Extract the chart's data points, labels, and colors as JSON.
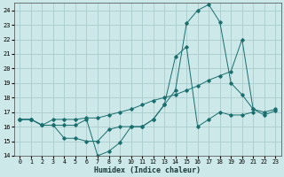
{
  "xlabel": "Humidex (Indice chaleur)",
  "bg_color": "#cce8e8",
  "grid_color": "#aacccc",
  "line_color": "#1a6e6e",
  "xlim": [
    -0.5,
    23.5
  ],
  "ylim": [
    14,
    24.5
  ],
  "yticks": [
    14,
    15,
    16,
    17,
    18,
    19,
    20,
    21,
    22,
    23,
    24
  ],
  "xticks": [
    0,
    1,
    2,
    3,
    4,
    5,
    6,
    7,
    8,
    9,
    10,
    11,
    12,
    13,
    14,
    15,
    16,
    17,
    18,
    19,
    20,
    21,
    22,
    23
  ],
  "line1_x": [
    0,
    1,
    2,
    3,
    4,
    5,
    6,
    7,
    8,
    9,
    10,
    11,
    12,
    13,
    14,
    15,
    16,
    17,
    18,
    19,
    20,
    21
  ],
  "line1_y": [
    16.5,
    16.5,
    16.1,
    16.1,
    16.1,
    16.1,
    16.5,
    14.0,
    14.3,
    14.9,
    16.0,
    16.0,
    16.5,
    17.5,
    20.8,
    21.5,
    16.0,
    16.5,
    17.0,
    16.8,
    16.8,
    17.0
  ],
  "line2_x": [
    0,
    1,
    2,
    3,
    4,
    5,
    6,
    7,
    8,
    9,
    10,
    11,
    12,
    13,
    14,
    15,
    16,
    17,
    18,
    19,
    20,
    21,
    22,
    23
  ],
  "line2_y": [
    16.5,
    16.5,
    16.1,
    16.1,
    15.2,
    15.2,
    15.0,
    15.0,
    15.8,
    16.0,
    16.0,
    16.0,
    16.5,
    17.5,
    18.5,
    23.1,
    24.0,
    24.4,
    23.2,
    19.0,
    18.2,
    17.2,
    16.8,
    17.1
  ],
  "line3_x": [
    0,
    1,
    2,
    3,
    4,
    5,
    6,
    7,
    8,
    9,
    10,
    11,
    12,
    13,
    14,
    15,
    16,
    17,
    18,
    19,
    20,
    21,
    22,
    23
  ],
  "line3_y": [
    16.5,
    16.5,
    16.1,
    16.5,
    16.5,
    16.5,
    16.6,
    16.6,
    16.8,
    17.0,
    17.2,
    17.5,
    17.8,
    18.0,
    18.2,
    18.5,
    18.8,
    19.2,
    19.5,
    19.8,
    22.0,
    17.2,
    17.0,
    17.2
  ]
}
